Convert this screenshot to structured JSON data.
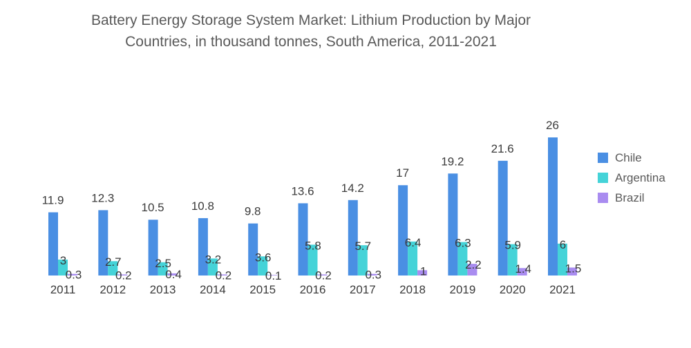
{
  "chart_data": {
    "type": "bar",
    "title_lines": [
      "Battery Energy Storage System Market: Lithium Production by Major",
      "Countries, in thousand tonnes, South America, 2011-2021"
    ],
    "categories": [
      "2011",
      "2012",
      "2013",
      "2014",
      "2015",
      "2016",
      "2017",
      "2018",
      "2019",
      "2020",
      "2021"
    ],
    "series": [
      {
        "name": "Chile",
        "color": "#4a8fe3",
        "values": [
          11.9,
          12.3,
          10.5,
          10.8,
          9.8,
          13.6,
          14.2,
          17,
          19.2,
          21.6,
          26
        ]
      },
      {
        "name": "Argentina",
        "color": "#45d3d8",
        "values": [
          3,
          2.7,
          2.5,
          3.2,
          3.6,
          5.8,
          5.7,
          6.4,
          6.3,
          5.9,
          6
        ]
      },
      {
        "name": "Brazil",
        "color": "#a98cf0",
        "values": [
          0.3,
          0.2,
          0.4,
          0.2,
          0.1,
          0.2,
          0.3,
          1,
          2.2,
          1.4,
          1.5
        ]
      }
    ],
    "xlabel": "",
    "ylabel": "",
    "ylim": [
      0,
      26
    ],
    "grid": false,
    "legend": "right"
  }
}
